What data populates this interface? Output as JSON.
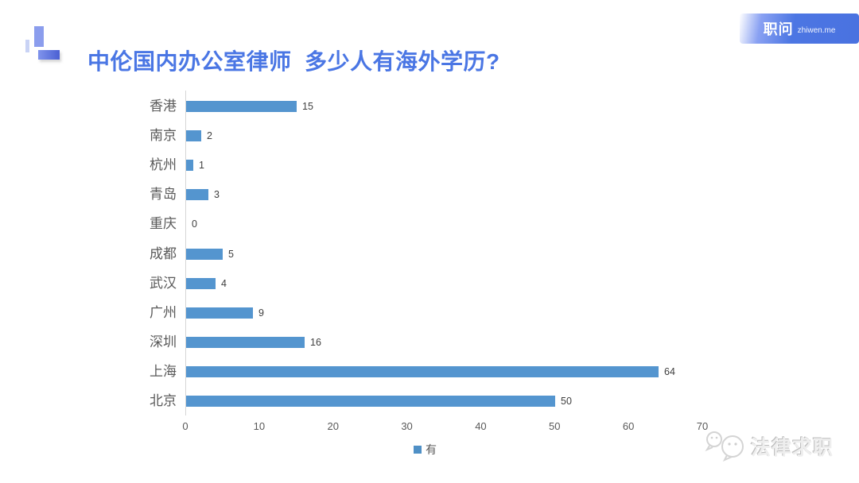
{
  "header": {
    "title": "中伦国内办公室律师  多少人有海外学历?",
    "badge": {
      "brand": "职问",
      "domain": "zhiwen.me",
      "background_color": "#4c76e3",
      "text_color": "#ffffff"
    }
  },
  "watermark": {
    "text": "法律求职",
    "icon": "chat-bubbles-logo-icon"
  },
  "chart_data": {
    "type": "bar",
    "orientation": "horizontal",
    "title": "中伦国内办公室律师  多少人有海外学历?",
    "categories": [
      "香港",
      "南京",
      "杭州",
      "青岛",
      "重庆",
      "成都",
      "武汉",
      "广州",
      "深圳",
      "上海",
      "北京"
    ],
    "values": [
      15,
      2,
      1,
      3,
      0,
      5,
      4,
      9,
      16,
      64,
      50
    ],
    "series_name": "有",
    "legend": [
      "有"
    ],
    "legend_position": "bottom",
    "x_ticks": [
      0,
      10,
      20,
      30,
      40,
      50,
      60,
      70
    ],
    "xlim": [
      0,
      70
    ],
    "xlabel": "",
    "ylabel": "",
    "grid": false,
    "bar_color": "#5495cf",
    "axis_line_color": "#d6d6d6",
    "label_color": "#595959",
    "value_label_color": "#3f3f3f",
    "title_color": "#4a76e4"
  }
}
